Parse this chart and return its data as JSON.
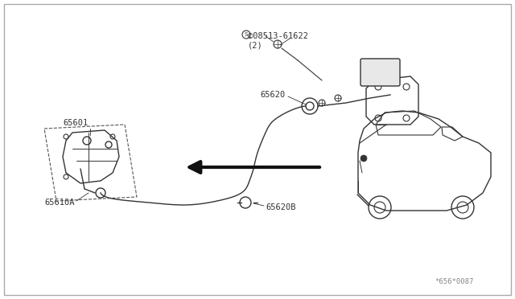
{
  "background_color": "#ffffff",
  "border_color": "#cccccc",
  "line_color": "#333333",
  "label_color": "#333333",
  "fig_width": 6.4,
  "fig_height": 3.72,
  "labels": {
    "part_number_bolt": "©08513-61622\n(2)",
    "part_65620": "65620",
    "part_65601": "65601",
    "part_65610A": "65610A",
    "part_65620B": "65620B",
    "diagram_code": "*656*0087"
  }
}
